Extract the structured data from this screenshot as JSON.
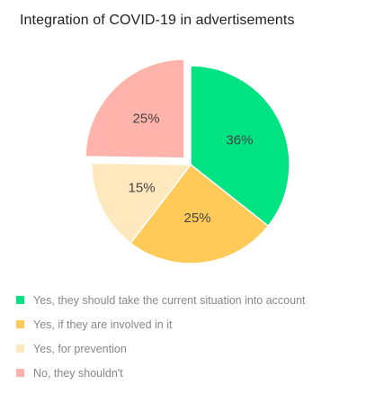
{
  "chart_data": {
    "type": "pie",
    "title": "Integration of COVID-19 in advertisements",
    "slices": [
      {
        "label": "Yes, they should take the current situation into account",
        "value": 36,
        "display": "36%",
        "color": "#00e383",
        "exploded": false
      },
      {
        "label": "Yes, if they are involved in it",
        "value": 25,
        "display": "25%",
        "color": "#ffca57",
        "exploded": false
      },
      {
        "label": "Yes, for prevention",
        "value": 15,
        "display": "15%",
        "color": "#ffe8bd",
        "exploded": false
      },
      {
        "label": "No, they shouldn't",
        "value": 25,
        "display": "25%",
        "color": "#ffb3aa",
        "exploded": true
      }
    ],
    "legend_position": "bottom-left"
  }
}
